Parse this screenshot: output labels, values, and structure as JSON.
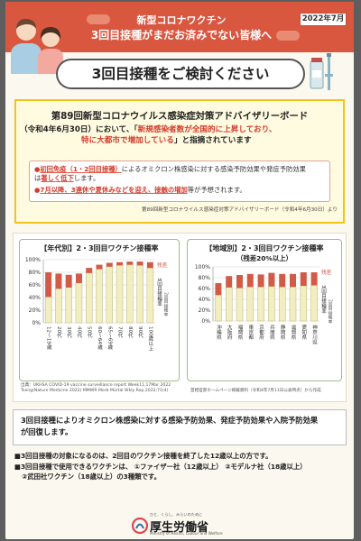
{
  "header": {
    "line1": "新型コロナワクチン",
    "line2": "3回目接種がまだお済みでない皆様へ",
    "date": "2022年7月"
  },
  "title": "3回目接種をご検討ください",
  "board": {
    "heading": "第89回新型コロナウイルス感染症対策アドバイザリーボード",
    "date_prefix": "（令和4年6月30日）において、「",
    "quote_part1": "新規感染者数が全国的に上昇しており、",
    "quote_part2": "特に大都市で増加している",
    "quote_suffix": "」と指摘されています",
    "bullet1_a": "初回免疫（1・2回目接種）",
    "bullet1_b": "によるオミクロン株感染に対する感染予防効果や発症予防効果",
    "bullet1_c": "は",
    "bullet1_d": "著しく低下",
    "bullet1_e": "します。",
    "bullet2_a": "7月以降、3連休や夏休みなどを迎え、",
    "bullet2_b": "接触の増加",
    "bullet2_c": "等が予想されます。",
    "source": "第89回新型コロナウイルス感染症対策アドバイザリーボード（令和4年6月30日）より"
  },
  "chart_data": [
    {
      "type": "bar",
      "title": "【年代別】2・3回目ワクチン接種率",
      "categories": [
        "12〜19歳",
        "20代",
        "30代",
        "40代",
        "50代",
        "60〜64歳",
        "65〜69歳",
        "70代",
        "80代",
        "90代",
        "100歳以上"
      ],
      "series": [
        {
          "name": "2・3回目接種",
          "values": [
            41,
            54,
            56,
            63,
            79,
            85,
            89,
            91,
            92,
            91,
            87
          ]
        },
        {
          "name": "残差",
          "values": [
            39,
            24,
            20,
            15,
            8,
            7,
            6,
            5,
            5,
            6,
            9
          ]
        }
      ],
      "ylim": [
        0,
        100
      ],
      "yticks": [
        "0%",
        "20%",
        "40%",
        "60%",
        "80%",
        "100%"
      ],
      "legend_top": "残差",
      "legend_bottom": "3回目接種率",
      "legend_small": "2回目接種率",
      "colors": {
        "lower": "#f2eec0",
        "upper": "#d25b48",
        "border": "#9bbd8f"
      }
    },
    {
      "type": "bar",
      "title": "【地域別】2・3回目ワクチン接種率",
      "subtitle": "（残差20%以上）",
      "categories": [
        "沖縄県",
        "大阪府",
        "福岡県",
        "東京都",
        "京都府",
        "兵庫県",
        "静岡県",
        "滋賀県",
        "愛知県",
        "神奈川県"
      ],
      "series": [
        {
          "name": "2・3回目接種",
          "values": [
            48,
            62,
            61,
            63,
            63,
            64,
            63,
            63,
            65,
            66
          ]
        },
        {
          "name": "残差",
          "values": [
            22,
            21,
            24,
            24,
            23,
            25,
            24,
            24,
            25,
            24
          ]
        }
      ],
      "ylim": [
        0,
        100
      ],
      "yticks": [
        "0%",
        "20%",
        "40%",
        "60%",
        "80%",
        "100%"
      ],
      "legend_top": "残差",
      "legend_bottom": "3回目接種率",
      "legend_small": "2回目接種率",
      "colors": {
        "lower": "#f2eec0",
        "upper": "#d25b48",
        "border": "#9bbd8f"
      }
    }
  ],
  "chart_source_left": "出典：UKHSA COVID-19 vaccine surveillance report Week11,17Mar 2022 Tseng(Nature Medicine 2022) MMWR Morb Mortal Wkly Rep.2022;71(4)",
  "chart_source_right": "首相官邸ホームページ掲載資料（令和4年7月11日公表時点）から作成",
  "summary": {
    "line1": "3回目接種によりオミクロン株感染に対する感染予防効果、発症予防効果や入院予防効果",
    "line2": "が回復します。"
  },
  "notes": {
    "n1": "■3回目接種の対象になるのは、2回目のワクチン接種を終了した12歳以上の方です。",
    "n2": "■3回目接種で使用できるワクチンは、 ①ファイザー社（12歳以上） ②モデルナ社（18歳以上）",
    "n3": "②武田社ワクチン（18歳以上）の3種類です。"
  },
  "footer": {
    "tagline": "ひと、くらし、みらいのために",
    "ministry": "厚生労働省",
    "ministry_en": "Ministry of Health, Labour and Welfare"
  }
}
